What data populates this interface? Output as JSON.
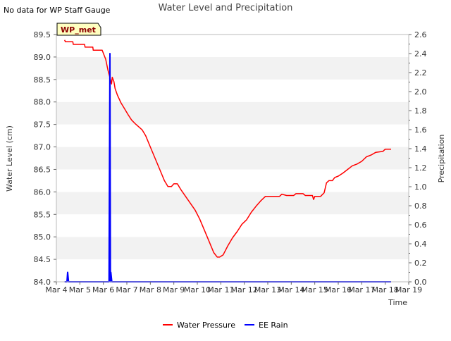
{
  "notice": "No data for WP Staff Gauge",
  "site_badge": "WP_met",
  "chart_data": {
    "type": "line",
    "title": "Water Level and Precipitation",
    "xlabel": "Time",
    "ylabel": "Water Level (cm)",
    "y2label": "Precipitation",
    "x_ticks": [
      "Mar 4",
      "Mar 5",
      "Mar 6",
      "Mar 7",
      "Mar 8",
      "Mar 9",
      "Mar 10",
      "Mar 11",
      "Mar 12",
      "Mar 13",
      "Mar 14",
      "Mar 15",
      "Mar 16",
      "Mar 17",
      "Mar 18",
      "Mar 19"
    ],
    "x_range_days": [
      4,
      19
    ],
    "ylim": [
      84.0,
      89.5
    ],
    "y_ticks": [
      "84.0",
      "84.5",
      "85.0",
      "85.5",
      "86.0",
      "86.5",
      "87.0",
      "87.5",
      "88.0",
      "88.5",
      "89.0",
      "89.5"
    ],
    "y2lim": [
      0.0,
      2.6
    ],
    "y2_ticks": [
      "0.0",
      "0.2",
      "0.4",
      "0.6",
      "0.8",
      "1.0",
      "1.2",
      "1.4",
      "1.6",
      "1.8",
      "2.0",
      "2.2",
      "2.4",
      "2.6"
    ],
    "grid": "horizontal bands",
    "legend_position": "bottom-center",
    "series": [
      {
        "name": "Water Pressure",
        "axis": "left",
        "color": "#ff0000",
        "points": [
          [
            4.35,
            89.38
          ],
          [
            4.38,
            89.34
          ],
          [
            4.7,
            89.34
          ],
          [
            4.72,
            89.28
          ],
          [
            5.2,
            89.28
          ],
          [
            5.22,
            89.22
          ],
          [
            5.55,
            89.22
          ],
          [
            5.57,
            89.15
          ],
          [
            5.95,
            89.15
          ],
          [
            6.1,
            88.95
          ],
          [
            6.2,
            88.7
          ],
          [
            6.3,
            88.5
          ],
          [
            6.35,
            88.4
          ],
          [
            6.38,
            88.55
          ],
          [
            6.45,
            88.45
          ],
          [
            6.5,
            88.3
          ],
          [
            6.6,
            88.15
          ],
          [
            6.75,
            87.98
          ],
          [
            6.9,
            87.85
          ],
          [
            7.05,
            87.72
          ],
          [
            7.2,
            87.6
          ],
          [
            7.35,
            87.52
          ],
          [
            7.5,
            87.45
          ],
          [
            7.65,
            87.38
          ],
          [
            7.8,
            87.25
          ],
          [
            8.0,
            87.0
          ],
          [
            8.2,
            86.75
          ],
          [
            8.4,
            86.5
          ],
          [
            8.6,
            86.25
          ],
          [
            8.75,
            86.12
          ],
          [
            8.9,
            86.12
          ],
          [
            9.0,
            86.18
          ],
          [
            9.15,
            86.18
          ],
          [
            9.3,
            86.05
          ],
          [
            9.5,
            85.9
          ],
          [
            9.7,
            85.75
          ],
          [
            9.9,
            85.6
          ],
          [
            10.1,
            85.4
          ],
          [
            10.3,
            85.15
          ],
          [
            10.5,
            84.9
          ],
          [
            10.7,
            84.65
          ],
          [
            10.85,
            84.55
          ],
          [
            10.95,
            84.55
          ],
          [
            11.1,
            84.6
          ],
          [
            11.3,
            84.8
          ],
          [
            11.5,
            84.98
          ],
          [
            11.7,
            85.12
          ],
          [
            11.9,
            85.28
          ],
          [
            12.1,
            85.38
          ],
          [
            12.3,
            85.55
          ],
          [
            12.5,
            85.68
          ],
          [
            12.7,
            85.8
          ],
          [
            12.9,
            85.9
          ],
          [
            13.1,
            85.9
          ],
          [
            13.5,
            85.9
          ],
          [
            13.6,
            85.95
          ],
          [
            13.8,
            85.92
          ],
          [
            14.1,
            85.92
          ],
          [
            14.2,
            85.96
          ],
          [
            14.5,
            85.96
          ],
          [
            14.6,
            85.92
          ],
          [
            14.9,
            85.92
          ],
          [
            14.95,
            85.83
          ],
          [
            15.0,
            85.9
          ],
          [
            15.25,
            85.9
          ],
          [
            15.4,
            85.98
          ],
          [
            15.5,
            86.2
          ],
          [
            15.6,
            86.25
          ],
          [
            15.75,
            86.25
          ],
          [
            15.85,
            86.32
          ],
          [
            16.0,
            86.35
          ],
          [
            16.2,
            86.42
          ],
          [
            16.4,
            86.5
          ],
          [
            16.6,
            86.58
          ],
          [
            16.8,
            86.62
          ],
          [
            17.0,
            86.68
          ],
          [
            17.2,
            86.78
          ],
          [
            17.4,
            86.82
          ],
          [
            17.6,
            86.88
          ],
          [
            17.9,
            86.9
          ],
          [
            18.0,
            86.95
          ],
          [
            18.25,
            86.95
          ]
        ]
      },
      {
        "name": "EE Rain",
        "axis": "right",
        "color": "#0000ff",
        "points": [
          [
            4.35,
            0.0
          ],
          [
            4.45,
            0.0
          ],
          [
            4.48,
            0.1
          ],
          [
            4.52,
            0.0
          ],
          [
            6.24,
            0.0
          ],
          [
            6.28,
            2.4
          ],
          [
            6.3,
            0.0
          ],
          [
            6.32,
            0.1
          ],
          [
            6.36,
            0.0
          ],
          [
            18.25,
            0.0
          ]
        ]
      }
    ]
  }
}
